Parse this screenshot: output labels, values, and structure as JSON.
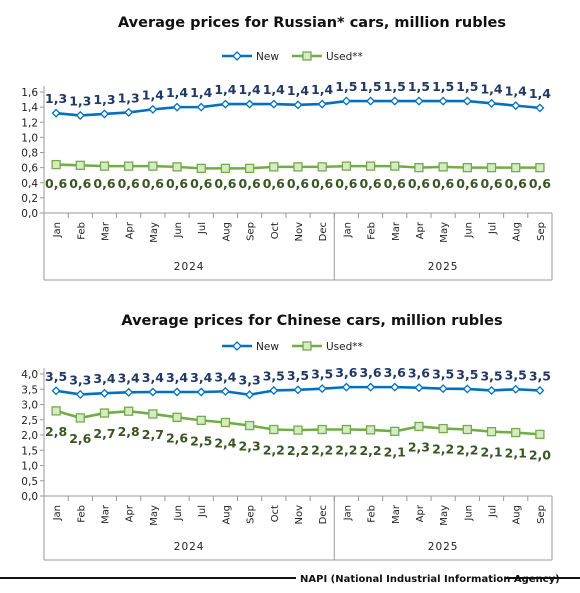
{
  "chart_data": [
    {
      "type": "line",
      "title": "Average prices for Russian* cars, million rubles",
      "categories": [
        "Jan",
        "Feb",
        "Mar",
        "Apr",
        "May",
        "Jun",
        "Jul",
        "Aug",
        "Sep",
        "Oct",
        "Nov",
        "Dec",
        "Jan",
        "Feb",
        "Mar",
        "Apr",
        "May",
        "Jun",
        "Jul",
        "Aug",
        "Sep"
      ],
      "years": [
        {
          "label": "2024",
          "from": 0,
          "to": 11
        },
        {
          "label": "2025",
          "from": 12,
          "to": 20
        }
      ],
      "y_ticks": [
        "0,0",
        "0,2",
        "0,4",
        "0,6",
        "0,8",
        "1,0",
        "1,2",
        "1,4",
        "1,6"
      ],
      "ylim": [
        0,
        1.6
      ],
      "series": [
        {
          "name": "New",
          "color": "#0070c0",
          "label_color": "#1f3864",
          "marker": "diamond",
          "values": [
            1.32,
            1.29,
            1.31,
            1.33,
            1.37,
            1.4,
            1.4,
            1.44,
            1.44,
            1.44,
            1.43,
            1.44,
            1.48,
            1.48,
            1.48,
            1.48,
            1.48,
            1.48,
            1.45,
            1.42,
            1.39
          ],
          "labels": [
            "1,3",
            "1,3",
            "1,3",
            "1,3",
            "1,4",
            "1,4",
            "1,4",
            "1,4",
            "1,4",
            "1,4",
            "1,4",
            "1,4",
            "1,5",
            "1,5",
            "1,5",
            "1,5",
            "1,5",
            "1,5",
            "1,4",
            "1,4",
            "1,4"
          ]
        },
        {
          "name": "Used**",
          "color": "#70ad47",
          "label_color": "#375623",
          "marker": "square",
          "values": [
            0.64,
            0.63,
            0.62,
            0.62,
            0.62,
            0.61,
            0.59,
            0.59,
            0.59,
            0.61,
            0.61,
            0.61,
            0.62,
            0.62,
            0.62,
            0.6,
            0.61,
            0.6,
            0.6,
            0.6,
            0.6
          ],
          "labels": [
            "0,6",
            "0,6",
            "0,6",
            "0,6",
            "0,6",
            "0,6",
            "0,6",
            "0,6",
            "0,6",
            "0,6",
            "0,6",
            "0,6",
            "0,6",
            "0,6",
            "0,6",
            "0,6",
            "0,6",
            "0,6",
            "0,6",
            "0,6",
            "0,6"
          ]
        }
      ],
      "legend": "top-center",
      "grid": false
    },
    {
      "type": "line",
      "title": "Average prices for Chinese cars, million rubles",
      "categories": [
        "Jan",
        "Feb",
        "Mar",
        "Apr",
        "May",
        "Jun",
        "Jul",
        "Aug",
        "Sep",
        "Oct",
        "Nov",
        "Dec",
        "Jan",
        "Feb",
        "Mar",
        "Apr",
        "May",
        "Jun",
        "Jul",
        "Aug",
        "Sep"
      ],
      "years": [
        {
          "label": "2024",
          "from": 0,
          "to": 11
        },
        {
          "label": "2025",
          "from": 12,
          "to": 20
        }
      ],
      "y_ticks": [
        "0,0",
        "0,5",
        "1,0",
        "1,5",
        "2,0",
        "2,5",
        "3,0",
        "3,5",
        "4,0"
      ],
      "ylim": [
        0,
        4.0
      ],
      "series": [
        {
          "name": "New",
          "color": "#0070c0",
          "label_color": "#1f3864",
          "marker": "diamond",
          "values": [
            3.45,
            3.33,
            3.37,
            3.4,
            3.41,
            3.41,
            3.41,
            3.43,
            3.32,
            3.46,
            3.48,
            3.52,
            3.57,
            3.57,
            3.57,
            3.55,
            3.52,
            3.51,
            3.46,
            3.5,
            3.46
          ],
          "labels": [
            "3,5",
            "3,3",
            "3,4",
            "3,4",
            "3,4",
            "3,4",
            "3,4",
            "3,4",
            "3,3",
            "3,5",
            "3,5",
            "3,5",
            "3,6",
            "3,6",
            "3,6",
            "3,6",
            "3,5",
            "3,5",
            "3,5",
            "3,5",
            "3,5"
          ]
        },
        {
          "name": "Used**",
          "color": "#70ad47",
          "label_color": "#375623",
          "marker": "square",
          "values": [
            2.79,
            2.56,
            2.72,
            2.78,
            2.69,
            2.58,
            2.48,
            2.41,
            2.31,
            2.18,
            2.16,
            2.18,
            2.18,
            2.17,
            2.12,
            2.28,
            2.21,
            2.18,
            2.11,
            2.08,
            2.02
          ],
          "labels": [
            "2,8",
            "2,6",
            "2,7",
            "2,8",
            "2,7",
            "2,6",
            "2,5",
            "2,4",
            "2,3",
            "2,2",
            "2,2",
            "2,2",
            "2,2",
            "2,2",
            "2,1",
            "2,3",
            "2,2",
            "2,2",
            "2,1",
            "2,1",
            "2,0"
          ]
        }
      ],
      "legend": "top-center",
      "grid": false
    }
  ],
  "footer": {
    "source": "NAPI (National Industrial Information Agency)"
  }
}
